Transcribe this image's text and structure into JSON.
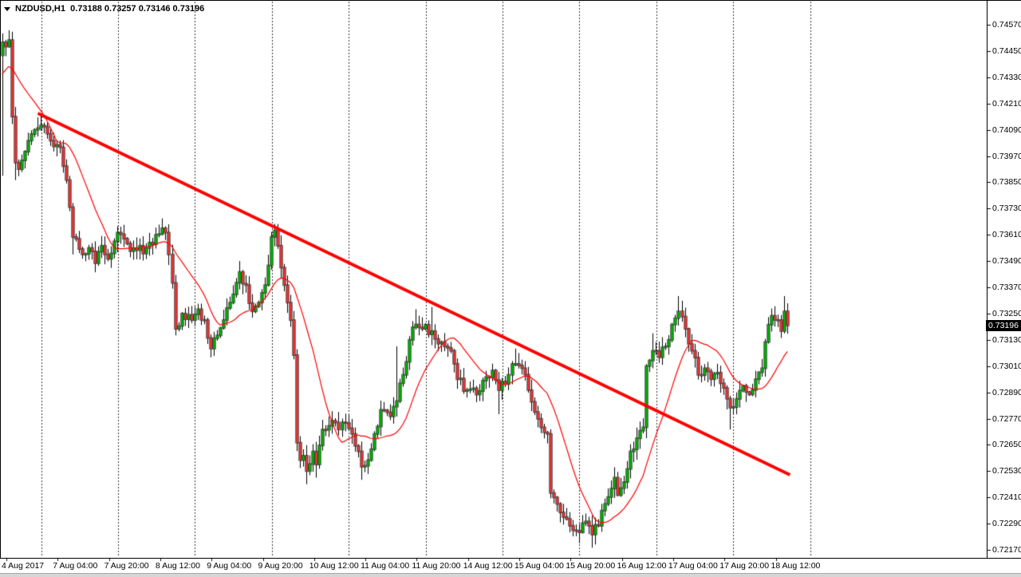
{
  "window": {
    "symbol_period": "NZDUSD,H1",
    "ohlc_string": "0.73188 0.73257 0.73146 0.73196"
  },
  "price_axis": {
    "current_price": "0.73196",
    "labels": [
      "0.74570",
      "0.74450",
      "0.74330",
      "0.74210",
      "0.74090",
      "0.73970",
      "0.73850",
      "0.73730",
      "0.73610",
      "0.73490",
      "0.73370",
      "0.73250",
      "0.73130",
      "0.73010",
      "0.72890",
      "0.72770",
      "0.72650",
      "0.72530",
      "0.72410",
      "0.72290",
      "0.72170"
    ]
  },
  "time_axis": {
    "labels": [
      "4 Aug 2017",
      "7 Aug 04:00",
      "7 Aug 20:00",
      "8 Aug 12:00",
      "9 Aug 04:00",
      "9 Aug 20:00",
      "10 Aug 12:00",
      "11 Aug 04:00",
      "11 Aug 20:00",
      "14 Aug 12:00",
      "15 Aug 04:00",
      "15 Aug 20:00",
      "16 Aug 12:00",
      "17 Aug 04:00",
      "17 Aug 20:00",
      "18 Aug 12:00"
    ]
  },
  "chart_data": {
    "type": "candlestick",
    "symbol": "NZDUSD",
    "timeframe": "H1",
    "title": "NZDUSD,H1",
    "ohlc_header": {
      "open": 0.73188,
      "high": 0.73257,
      "low": 0.73146,
      "close": 0.73196
    },
    "ylim": [
      0.7211,
      0.7463
    ],
    "price_step": 0.0012,
    "grid": "vertical-dashed-daily",
    "candle_count": 246,
    "close_path_anchors": [
      [
        0,
        0.7449
      ],
      [
        1,
        0.7447
      ],
      [
        2,
        0.745
      ],
      [
        3,
        0.7415
      ],
      [
        4,
        0.7394
      ],
      [
        5,
        0.7391
      ],
      [
        6,
        0.7395
      ],
      [
        7,
        0.7399
      ],
      [
        8,
        0.7404
      ],
      [
        10,
        0.7409
      ],
      [
        12,
        0.7411
      ],
      [
        15,
        0.7404
      ],
      [
        18,
        0.7401
      ],
      [
        20,
        0.7386
      ],
      [
        22,
        0.736
      ],
      [
        25,
        0.7352
      ],
      [
        27,
        0.7355
      ],
      [
        29,
        0.7348
      ],
      [
        31,
        0.7356
      ],
      [
        33,
        0.735
      ],
      [
        36,
        0.7362
      ],
      [
        39,
        0.7357
      ],
      [
        42,
        0.7354
      ],
      [
        45,
        0.7355
      ],
      [
        48,
        0.7361
      ],
      [
        50,
        0.7364
      ],
      [
        51,
        0.7362
      ],
      [
        52,
        0.7352
      ],
      [
        53,
        0.7339
      ],
      [
        54,
        0.7318
      ],
      [
        56,
        0.7325
      ],
      [
        59,
        0.7322
      ],
      [
        61,
        0.7327
      ],
      [
        63,
        0.7322
      ],
      [
        65,
        0.7309
      ],
      [
        67,
        0.7315
      ],
      [
        69,
        0.7322
      ],
      [
        71,
        0.733
      ],
      [
        74,
        0.7344
      ],
      [
        76,
        0.7338
      ],
      [
        78,
        0.7326
      ],
      [
        80,
        0.733
      ],
      [
        82,
        0.7338
      ],
      [
        83,
        0.7347
      ],
      [
        84,
        0.736
      ],
      [
        85,
        0.7363
      ],
      [
        86,
        0.7356
      ],
      [
        87,
        0.7346
      ],
      [
        88,
        0.7338
      ],
      [
        89,
        0.733
      ],
      [
        90,
        0.7322
      ],
      [
        91,
        0.7306
      ],
      [
        92,
        0.7266
      ],
      [
        93,
        0.7258
      ],
      [
        94,
        0.726
      ],
      [
        95,
        0.7253
      ],
      [
        97,
        0.7262
      ],
      [
        98,
        0.7256
      ],
      [
        100,
        0.7272
      ],
      [
        103,
        0.7276
      ],
      [
        105,
        0.7272
      ],
      [
        107,
        0.7275
      ],
      [
        109,
        0.727
      ],
      [
        111,
        0.7262
      ],
      [
        112,
        0.7255
      ],
      [
        114,
        0.7258
      ],
      [
        116,
        0.727
      ],
      [
        118,
        0.7281
      ],
      [
        121,
        0.7278
      ],
      [
        123,
        0.7285
      ],
      [
        125,
        0.7297
      ],
      [
        127,
        0.7313
      ],
      [
        129,
        0.732
      ],
      [
        131,
        0.7318
      ],
      [
        134,
        0.7317
      ],
      [
        137,
        0.7312
      ],
      [
        140,
        0.7308
      ],
      [
        142,
        0.7295
      ],
      [
        145,
        0.729
      ],
      [
        148,
        0.7288
      ],
      [
        151,
        0.7296
      ],
      [
        153,
        0.7299
      ],
      [
        155,
        0.729
      ],
      [
        158,
        0.7297
      ],
      [
        160,
        0.7302
      ],
      [
        162,
        0.73
      ],
      [
        164,
        0.729
      ],
      [
        166,
        0.728
      ],
      [
        168,
        0.7273
      ],
      [
        170,
        0.727
      ],
      [
        171,
        0.7243
      ],
      [
        173,
        0.7238
      ],
      [
        175,
        0.7232
      ],
      [
        177,
        0.7228
      ],
      [
        180,
        0.7225
      ],
      [
        182,
        0.723
      ],
      [
        184,
        0.7224
      ],
      [
        186,
        0.7228
      ],
      [
        188,
        0.7238
      ],
      [
        190,
        0.7245
      ],
      [
        191,
        0.725
      ],
      [
        192,
        0.7242
      ],
      [
        194,
        0.7248
      ],
      [
        196,
        0.7262
      ],
      [
        198,
        0.7268
      ],
      [
        200,
        0.7273
      ],
      [
        201,
        0.7301
      ],
      [
        203,
        0.7308
      ],
      [
        205,
        0.7305
      ],
      [
        207,
        0.731
      ],
      [
        209,
        0.732
      ],
      [
        211,
        0.7326
      ],
      [
        213,
        0.7318
      ],
      [
        215,
        0.7308
      ],
      [
        217,
        0.7297
      ],
      [
        219,
        0.73
      ],
      [
        221,
        0.7295
      ],
      [
        223,
        0.7298
      ],
      [
        225,
        0.7291
      ],
      [
        227,
        0.7282
      ],
      [
        229,
        0.7286
      ],
      [
        231,
        0.7292
      ],
      [
        233,
        0.7288
      ],
      [
        235,
        0.7295
      ],
      [
        237,
        0.73
      ],
      [
        238,
        0.7312
      ],
      [
        240,
        0.7324
      ],
      [
        242,
        0.7322
      ],
      [
        243,
        0.7317
      ],
      [
        244,
        0.7326
      ],
      [
        245,
        0.73196
      ]
    ],
    "wick_overrides": {
      "0": {
        "low": 0.7388
      },
      "2": {
        "high": 0.74545
      },
      "4": {
        "low": 0.7386
      },
      "22": {
        "low": 0.7352
      },
      "50": {
        "high": 0.73685
      },
      "54": {
        "low": 0.7315
      },
      "65": {
        "low": 0.7305
      },
      "74": {
        "high": 0.7349
      },
      "85": {
        "high": 0.7366
      },
      "95": {
        "low": 0.7247
      },
      "98": {
        "low": 0.725
      },
      "112": {
        "low": 0.7249
      },
      "123": {
        "high": 0.731
      },
      "129": {
        "high": 0.7327
      },
      "134": {
        "high": 0.7328
      },
      "155": {
        "low": 0.7279
      },
      "160": {
        "high": 0.7309
      },
      "180": {
        "low": 0.722
      },
      "184": {
        "low": 0.7218
      },
      "203": {
        "high": 0.7316
      },
      "211": {
        "high": 0.7333
      },
      "227": {
        "low": 0.7272
      },
      "244": {
        "high": 0.7333
      }
    },
    "moving_average": {
      "type": "SMA",
      "period": 15,
      "color": "#ff0000",
      "prehistory_start": 0.742,
      "prehistory_end": 0.7445
    },
    "trendline": {
      "start_index": 11.2,
      "start_price": 0.74165,
      "end_index": 245.8,
      "end_price": 0.72513,
      "color": "#ff0000",
      "width": 4
    },
    "colors": {
      "bull": "#00a800",
      "bear": "#dd3333",
      "outline": "#000000",
      "wick": "#000000",
      "grid": "#333333",
      "background": "#ffffff"
    }
  }
}
